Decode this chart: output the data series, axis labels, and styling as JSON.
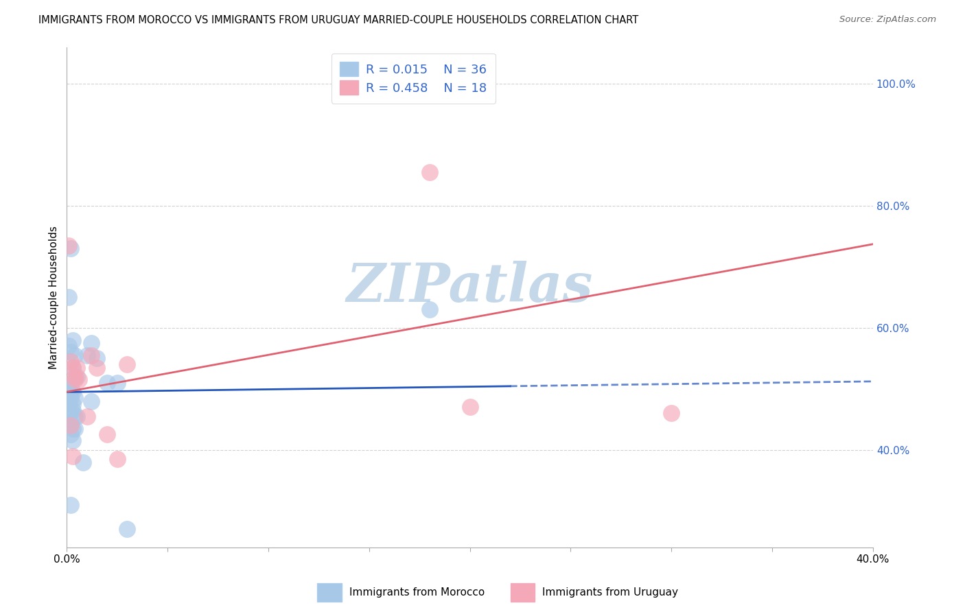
{
  "title": "IMMIGRANTS FROM MOROCCO VS IMMIGRANTS FROM URUGUAY MARRIED-COUPLE HOUSEHOLDS CORRELATION CHART",
  "source": "Source: ZipAtlas.com",
  "xlabel_morocco": "Immigrants from Morocco",
  "xlabel_uruguay": "Immigrants from Uruguay",
  "ylabel": "Married-couple Households",
  "xlim": [
    0.0,
    0.4
  ],
  "ylim": [
    0.24,
    1.06
  ],
  "xtick_positions": [
    0.0,
    0.05,
    0.1,
    0.15,
    0.2,
    0.25,
    0.3,
    0.35,
    0.4
  ],
  "xtick_labels": [
    "0.0%",
    "",
    "",
    "",
    "",
    "",
    "",
    "",
    "40.0%"
  ],
  "ytick_positions": [
    0.4,
    0.6,
    0.8,
    1.0
  ],
  "ytick_labels": [
    "40.0%",
    "60.0%",
    "80.0%",
    "100.0%"
  ],
  "morocco_R": 0.015,
  "morocco_N": 36,
  "uruguay_R": 0.458,
  "uruguay_N": 18,
  "morocco_color": "#a8c8e8",
  "uruguay_color": "#f4a8b8",
  "morocco_line_color": "#2255bb",
  "uruguay_line_color": "#e06070",
  "morocco_x": [
    0.002,
    0.001,
    0.003,
    0.001,
    0.002,
    0.004,
    0.003,
    0.005,
    0.002,
    0.001,
    0.002,
    0.003,
    0.004,
    0.002,
    0.003,
    0.001,
    0.002,
    0.003,
    0.005,
    0.004,
    0.002,
    0.001,
    0.003,
    0.004,
    0.002,
    0.01,
    0.012,
    0.015,
    0.02,
    0.025,
    0.18,
    0.003,
    0.002,
    0.012,
    0.008,
    0.03
  ],
  "morocco_y": [
    0.73,
    0.65,
    0.58,
    0.57,
    0.56,
    0.555,
    0.535,
    0.52,
    0.51,
    0.5,
    0.495,
    0.495,
    0.485,
    0.485,
    0.475,
    0.475,
    0.465,
    0.465,
    0.455,
    0.455,
    0.445,
    0.445,
    0.435,
    0.435,
    0.425,
    0.555,
    0.575,
    0.55,
    0.51,
    0.51,
    0.63,
    0.415,
    0.31,
    0.48,
    0.38,
    0.27
  ],
  "uruguay_x": [
    0.001,
    0.002,
    0.003,
    0.004,
    0.002,
    0.003,
    0.004,
    0.005,
    0.006,
    0.01,
    0.012,
    0.015,
    0.02,
    0.025,
    0.03,
    0.18,
    0.3,
    0.2
  ],
  "uruguay_y": [
    0.735,
    0.545,
    0.535,
    0.515,
    0.44,
    0.39,
    0.52,
    0.535,
    0.515,
    0.455,
    0.555,
    0.535,
    0.425,
    0.385,
    0.54,
    0.855,
    0.46,
    0.47
  ],
  "watermark": "ZIPatlas",
  "watermark_color": "#c5d8ea",
  "dot_size": 320,
  "dot_alpha": 0.65,
  "grid_color": "#cccccc",
  "grid_style": "--",
  "spine_color": "#aaaaaa"
}
